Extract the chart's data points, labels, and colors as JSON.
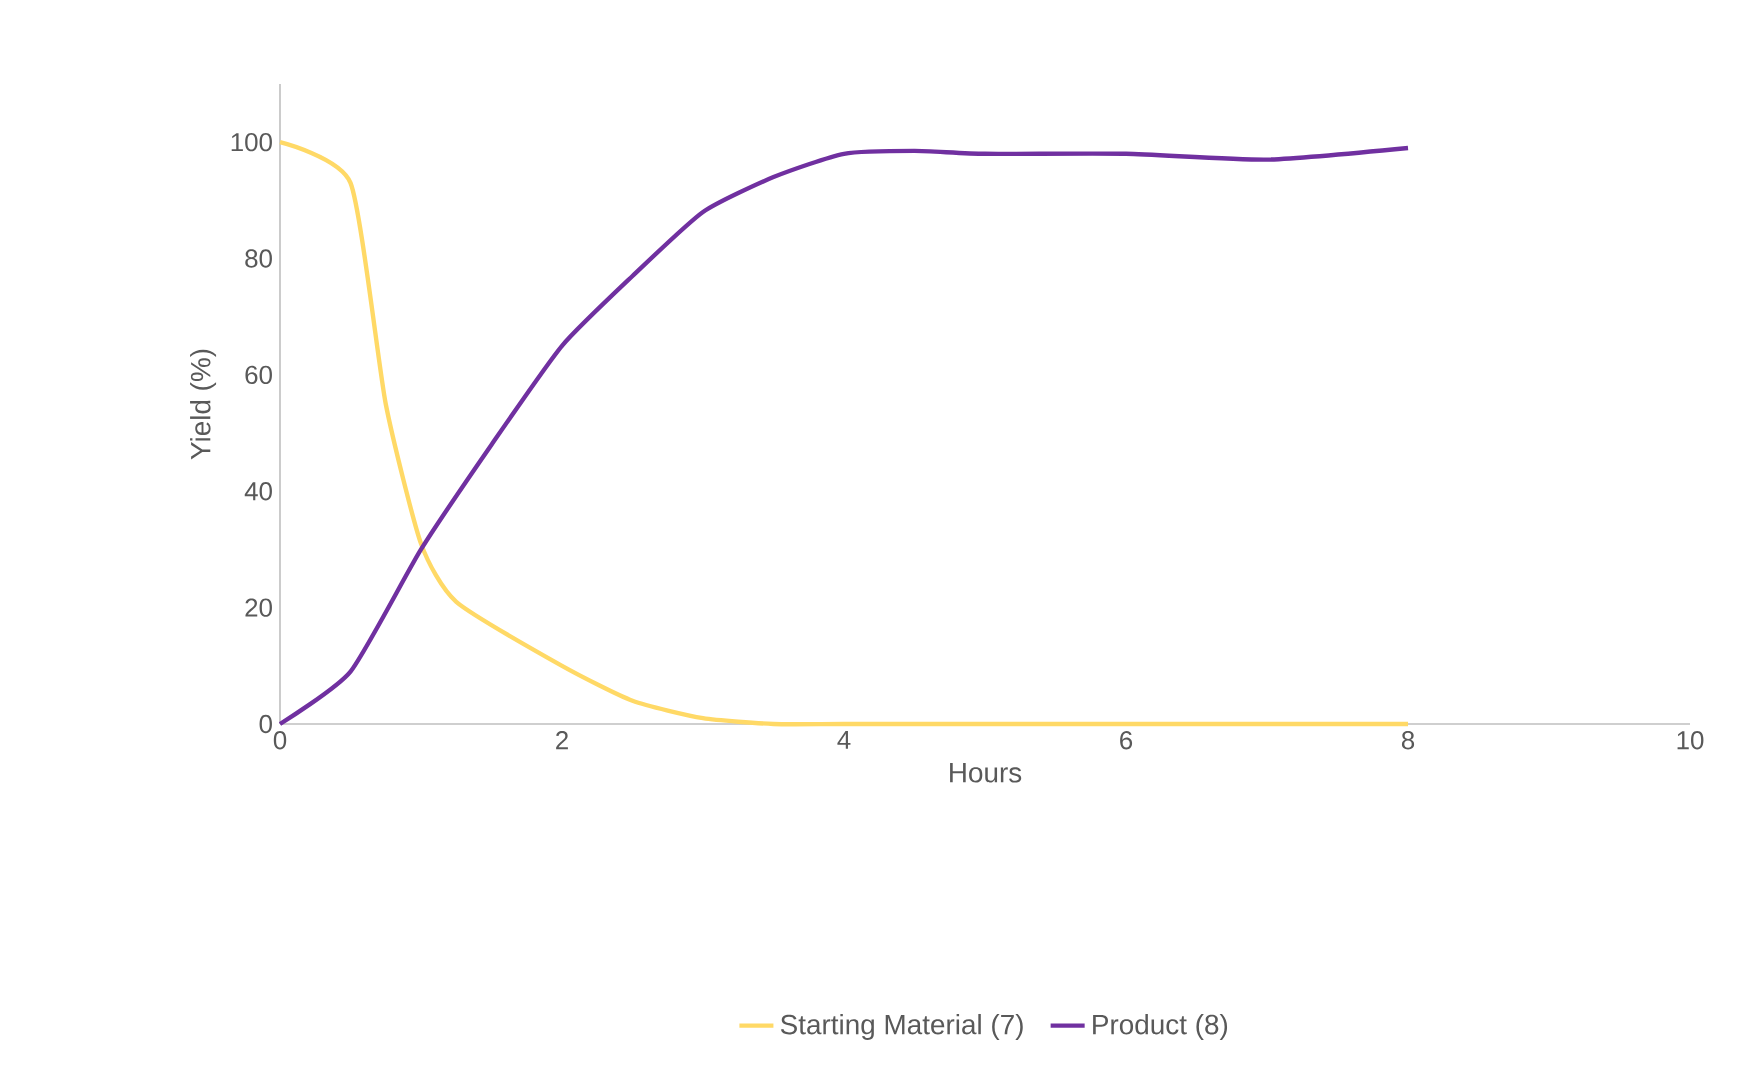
{
  "chart_data": {
    "type": "line",
    "xlabel": "Hours",
    "ylabel": "Yield (%)",
    "xlim": [
      0,
      10
    ],
    "ylim": [
      0,
      110
    ],
    "xticks": [
      0,
      2,
      4,
      6,
      8,
      10
    ],
    "yticks": [
      0,
      20,
      40,
      60,
      80,
      100
    ],
    "grid": false,
    "legend": "bottom",
    "marker": "none",
    "line_style": "solid",
    "series": [
      {
        "name": "Starting Material (7)",
        "color": "#ffd966",
        "x": [
          0,
          0.5,
          0.75,
          1,
          1.25,
          2,
          2.5,
          3,
          3.5,
          4,
          5,
          6,
          7,
          8
        ],
        "values": [
          100,
          93,
          55,
          31,
          21,
          10,
          4,
          1,
          0,
          0,
          0,
          0,
          0,
          0
        ]
      },
      {
        "name": "Product (8)",
        "color": "#7030a0",
        "x": [
          0,
          0.5,
          1,
          1.5,
          2,
          2.5,
          3,
          3.5,
          4,
          4.5,
          5,
          6,
          7,
          8
        ],
        "values": [
          0,
          9,
          30,
          48,
          65,
          77,
          88,
          94,
          98,
          98.5,
          98,
          98,
          97,
          99
        ]
      }
    ]
  }
}
